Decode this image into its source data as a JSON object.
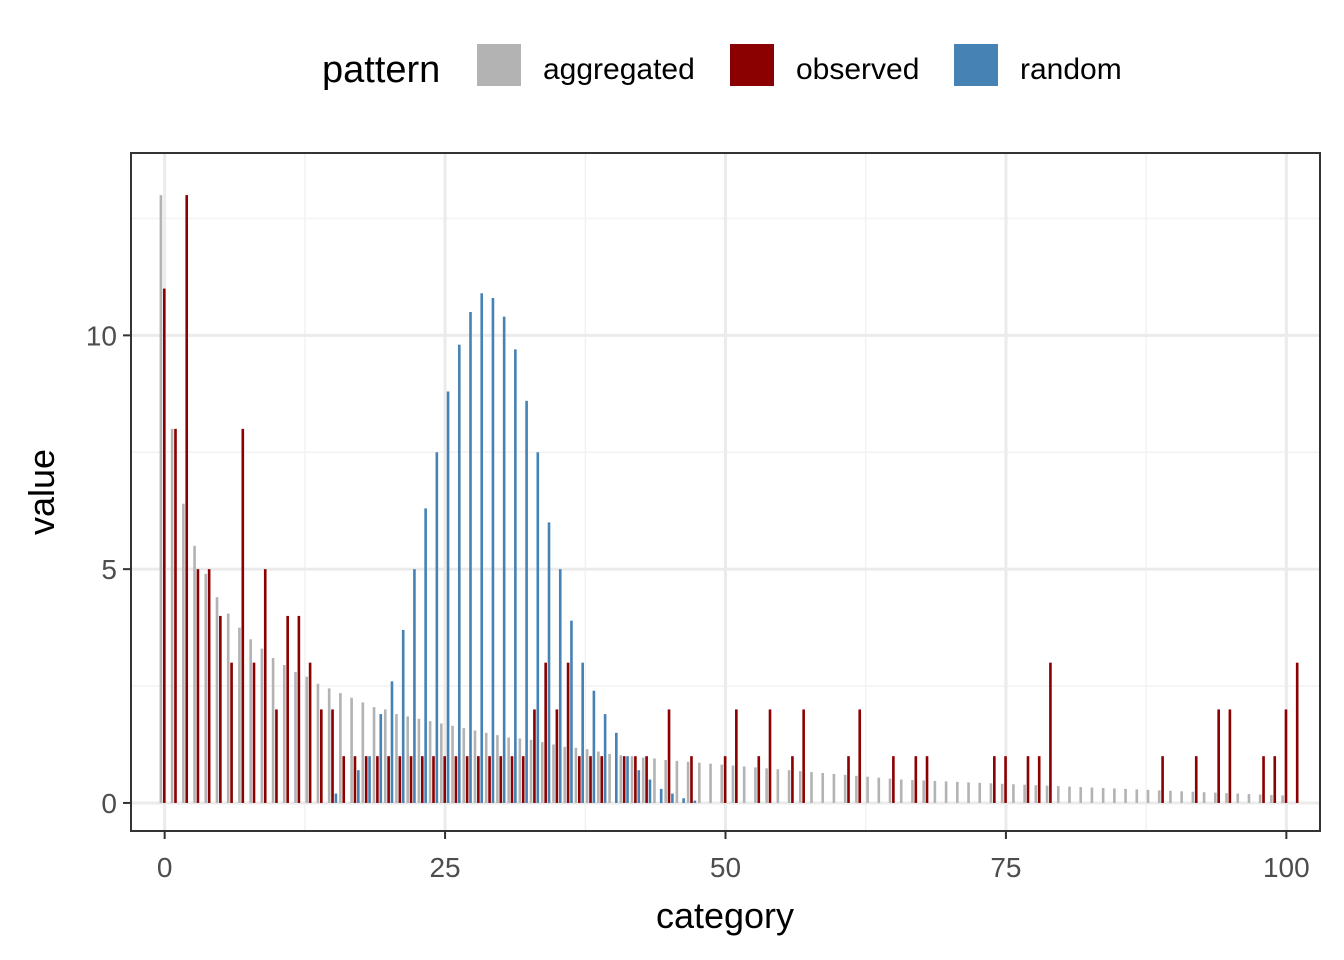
{
  "chart_data": {
    "type": "bar",
    "xlabel": "category",
    "ylabel": "value",
    "xlim": [
      -3,
      103
    ],
    "ylim": [
      -0.6,
      13.9
    ],
    "x_ticks": [
      0,
      25,
      50,
      75,
      100
    ],
    "x_tick_labels": [
      "0",
      "25",
      "50",
      "75",
      "100"
    ],
    "y_ticks": [
      0,
      5,
      10
    ],
    "y_tick_labels": [
      "0",
      "5",
      "10"
    ],
    "grid": true,
    "legend": {
      "title": "pattern",
      "position": "top",
      "entries": [
        "aggregated",
        "observed",
        "random"
      ]
    },
    "colors": {
      "aggregated": "#b3b3b3",
      "observed": "#8b0000",
      "random": "#4682b4"
    },
    "series": [
      {
        "name": "aggregated",
        "x_start": 0,
        "values": [
          13.0,
          8.0,
          6.4,
          5.5,
          4.9,
          4.4,
          4.05,
          3.75,
          3.5,
          3.3,
          3.1,
          2.95,
          2.8,
          2.7,
          2.55,
          2.45,
          2.35,
          2.25,
          2.15,
          2.05,
          2.0,
          1.9,
          1.85,
          1.8,
          1.75,
          1.7,
          1.65,
          1.6,
          1.55,
          1.5,
          1.45,
          1.4,
          1.38,
          1.35,
          1.3,
          1.25,
          1.2,
          1.18,
          1.15,
          1.1,
          1.05,
          1.02,
          1.0,
          0.97,
          0.95,
          0.92,
          0.9,
          0.88,
          0.86,
          0.84,
          0.82,
          0.8,
          0.78,
          0.76,
          0.74,
          0.72,
          0.7,
          0.68,
          0.66,
          0.64,
          0.62,
          0.6,
          0.58,
          0.56,
          0.54,
          0.52,
          0.5,
          0.49,
          0.48,
          0.47,
          0.46,
          0.45,
          0.44,
          0.43,
          0.42,
          0.41,
          0.4,
          0.39,
          0.38,
          0.37,
          0.36,
          0.35,
          0.34,
          0.33,
          0.32,
          0.31,
          0.3,
          0.29,
          0.28,
          0.27,
          0.26,
          0.25,
          0.24,
          0.23,
          0.22,
          0.21,
          0.2,
          0.19,
          0.18,
          0.17,
          0.16
        ]
      },
      {
        "name": "observed",
        "x_start": 0,
        "values": [
          11,
          8,
          13,
          5,
          5,
          4,
          3,
          8,
          3,
          5,
          2,
          4,
          4,
          3,
          2,
          2,
          1,
          1,
          1,
          1,
          1,
          1,
          1,
          1,
          1,
          1,
          1,
          1,
          1,
          1,
          1,
          1,
          1,
          2,
          3,
          2,
          3,
          1,
          1,
          1,
          0,
          1,
          1,
          1,
          0,
          2,
          0,
          1,
          0,
          0,
          1,
          2,
          0,
          1,
          2,
          0,
          1,
          2,
          0,
          0,
          0,
          1,
          2,
          0,
          0,
          1,
          0,
          1,
          1,
          0,
          0,
          0,
          0,
          0,
          1,
          1,
          0,
          1,
          1,
          3,
          0,
          0,
          0,
          0,
          0,
          0,
          0,
          0,
          0,
          1,
          0,
          0,
          1,
          0,
          2,
          2,
          0,
          0,
          1,
          1,
          2,
          3
        ]
      },
      {
        "name": "random",
        "x_start": 0,
        "values": [
          0,
          0,
          0,
          0,
          0,
          0,
          0,
          0,
          0,
          0,
          0,
          0,
          0,
          0,
          0,
          0.2,
          0,
          0.7,
          1.0,
          1.9,
          2.6,
          3.7,
          5.0,
          6.3,
          7.5,
          8.8,
          9.8,
          10.5,
          10.9,
          10.8,
          10.4,
          9.7,
          8.6,
          7.5,
          6.0,
          5.0,
          3.9,
          3.0,
          2.4,
          1.9,
          1.5,
          1.0,
          0.7,
          0.5,
          0.3,
          0.2,
          0.1,
          0.05
        ]
      }
    ]
  }
}
